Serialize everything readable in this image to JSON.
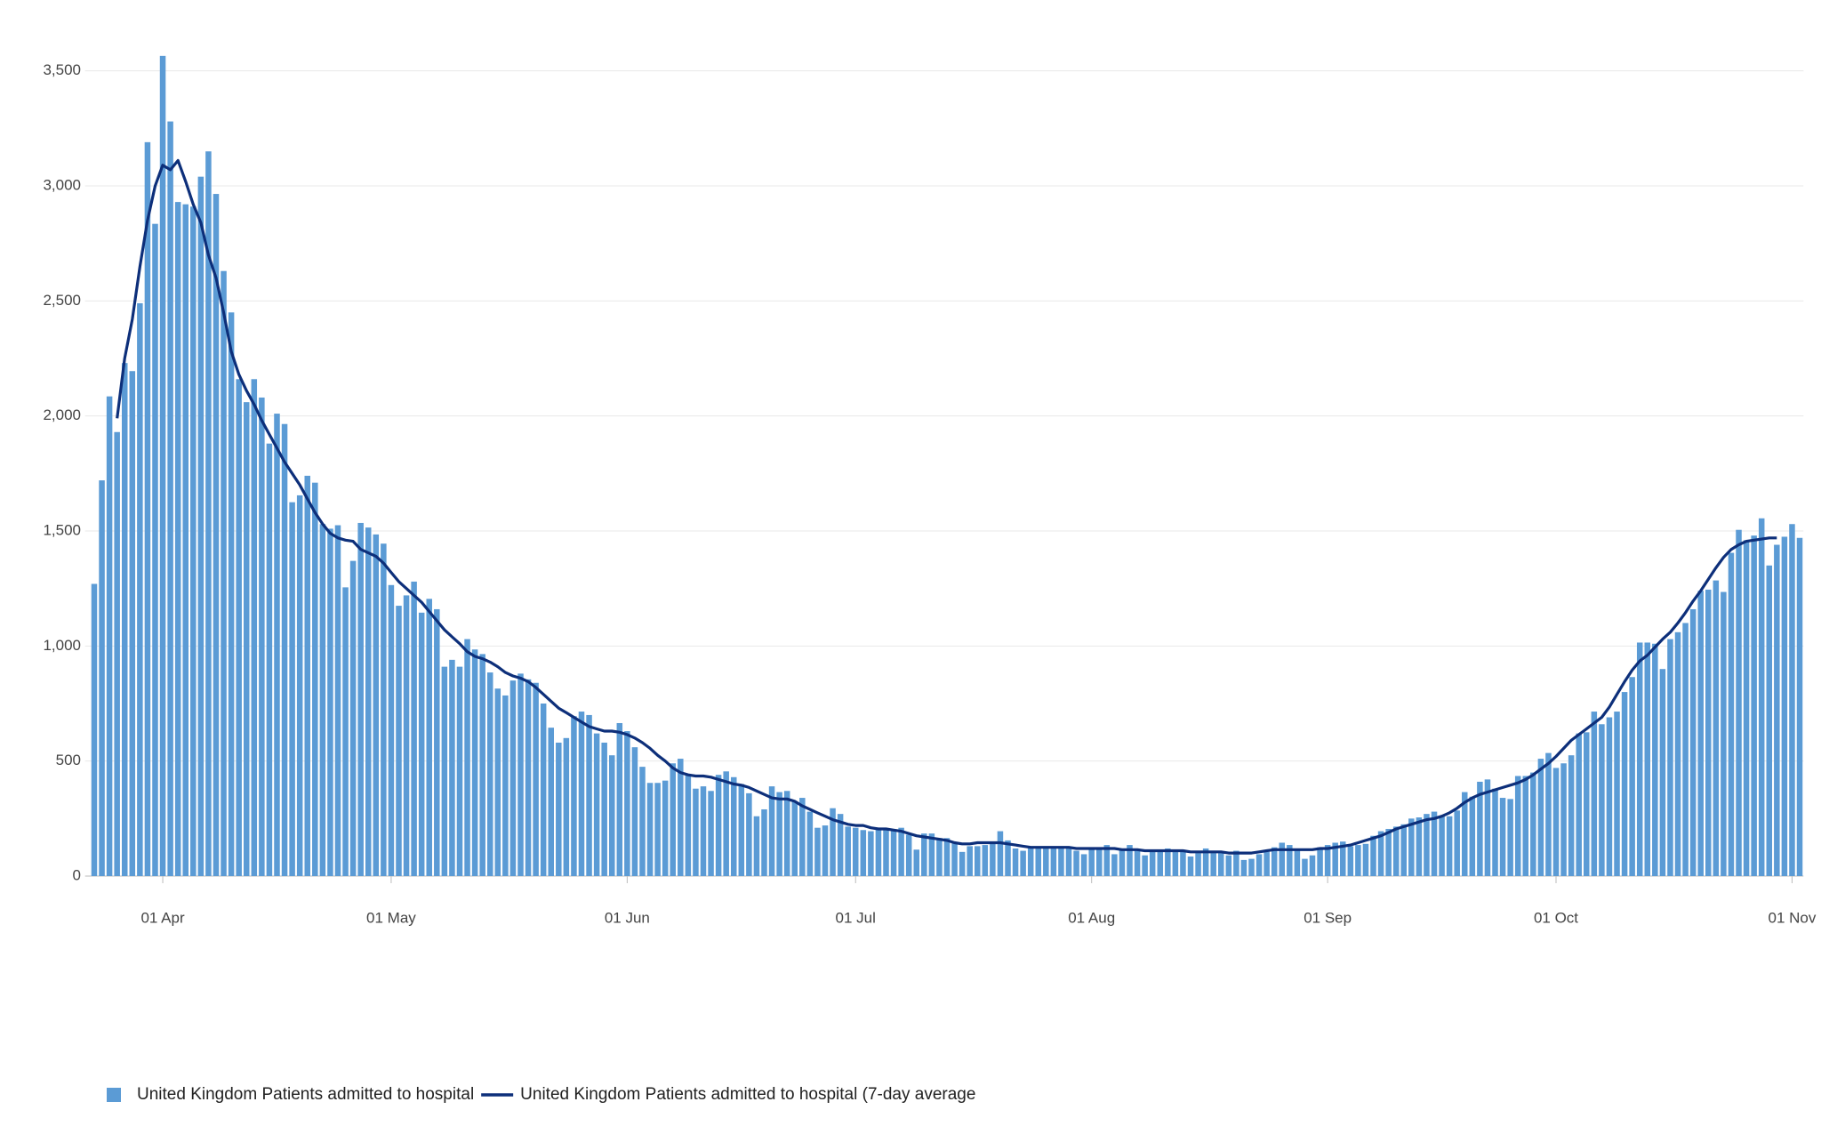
{
  "chart_data": {
    "type": "bar",
    "x": [
      "23 Mar",
      "24 Mar",
      "25 Mar",
      "26 Mar",
      "27 Mar",
      "28 Mar",
      "29 Mar",
      "30 Mar",
      "31 Mar",
      "01 Apr",
      "02 Apr",
      "03 Apr",
      "04 Apr",
      "05 Apr",
      "06 Apr",
      "07 Apr",
      "08 Apr",
      "09 Apr",
      "10 Apr",
      "11 Apr",
      "12 Apr",
      "13 Apr",
      "14 Apr",
      "15 Apr",
      "16 Apr",
      "17 Apr",
      "18 Apr",
      "19 Apr",
      "20 Apr",
      "21 Apr",
      "22 Apr",
      "23 Apr",
      "24 Apr",
      "25 Apr",
      "26 Apr",
      "27 Apr",
      "28 Apr",
      "29 Apr",
      "30 Apr",
      "01 May",
      "02 May",
      "03 May",
      "04 May",
      "05 May",
      "06 May",
      "07 May",
      "08 May",
      "09 May",
      "10 May",
      "11 May",
      "12 May",
      "13 May",
      "14 May",
      "15 May",
      "16 May",
      "17 May",
      "18 May",
      "19 May",
      "20 May",
      "21 May",
      "22 May",
      "23 May",
      "24 May",
      "25 May",
      "26 May",
      "27 May",
      "28 May",
      "29 May",
      "30 May",
      "31 May",
      "01 Jun",
      "02 Jun",
      "03 Jun",
      "04 Jun",
      "05 Jun",
      "06 Jun",
      "07 Jun",
      "08 Jun",
      "09 Jun",
      "10 Jun",
      "11 Jun",
      "12 Jun",
      "13 Jun",
      "14 Jun",
      "15 Jun",
      "16 Jun",
      "17 Jun",
      "18 Jun",
      "19 Jun",
      "20 Jun",
      "21 Jun",
      "22 Jun",
      "23 Jun",
      "24 Jun",
      "25 Jun",
      "26 Jun",
      "27 Jun",
      "28 Jun",
      "29 Jun",
      "30 Jun",
      "01 Jul",
      "02 Jul",
      "03 Jul",
      "04 Jul",
      "05 Jul",
      "06 Jul",
      "07 Jul",
      "08 Jul",
      "09 Jul",
      "10 Jul",
      "11 Jul",
      "12 Jul",
      "13 Jul",
      "14 Jul",
      "15 Jul",
      "16 Jul",
      "17 Jul",
      "18 Jul",
      "19 Jul",
      "20 Jul",
      "21 Jul",
      "22 Jul",
      "23 Jul",
      "24 Jul",
      "25 Jul",
      "26 Jul",
      "27 Jul",
      "28 Jul",
      "29 Jul",
      "30 Jul",
      "31 Jul",
      "01 Aug",
      "02 Aug",
      "03 Aug",
      "04 Aug",
      "05 Aug",
      "06 Aug",
      "07 Aug",
      "08 Aug",
      "09 Aug",
      "10 Aug",
      "11 Aug",
      "12 Aug",
      "13 Aug",
      "14 Aug",
      "15 Aug",
      "16 Aug",
      "17 Aug",
      "18 Aug",
      "19 Aug",
      "20 Aug",
      "21 Aug",
      "22 Aug",
      "23 Aug",
      "24 Aug",
      "25 Aug",
      "26 Aug",
      "27 Aug",
      "28 Aug",
      "29 Aug",
      "30 Aug",
      "31 Aug",
      "01 Sep",
      "02 Sep",
      "03 Sep",
      "04 Sep",
      "05 Sep",
      "06 Sep",
      "07 Sep",
      "08 Sep",
      "09 Sep",
      "10 Sep",
      "11 Sep",
      "12 Sep",
      "13 Sep",
      "14 Sep",
      "15 Sep",
      "16 Sep",
      "17 Sep",
      "18 Sep",
      "19 Sep",
      "20 Sep",
      "21 Sep",
      "22 Sep",
      "23 Sep",
      "24 Sep",
      "25 Sep",
      "26 Sep",
      "27 Sep",
      "28 Sep",
      "29 Sep",
      "30 Sep",
      "01 Oct",
      "02 Oct",
      "03 Oct",
      "04 Oct",
      "05 Oct",
      "06 Oct",
      "07 Oct",
      "08 Oct",
      "09 Oct",
      "10 Oct",
      "11 Oct",
      "12 Oct",
      "13 Oct",
      "14 Oct",
      "15 Oct",
      "16 Oct",
      "17 Oct",
      "18 Oct",
      "19 Oct",
      "20 Oct",
      "21 Oct",
      "22 Oct",
      "23 Oct",
      "24 Oct",
      "25 Oct",
      "26 Oct",
      "27 Oct",
      "28 Oct",
      "29 Oct",
      "30 Oct",
      "31 Oct",
      "01 Nov",
      "02 Nov"
    ],
    "series": [
      {
        "name": "United Kingdom Patients admitted to hospital",
        "type": "bar",
        "color": "#5b9bd5",
        "values": [
          1270,
          1720,
          2085,
          1930,
          2230,
          2195,
          2490,
          3190,
          2835,
          3565,
          3280,
          2930,
          2920,
          2910,
          3040,
          3150,
          2965,
          2630,
          2450,
          2160,
          2060,
          2160,
          2080,
          1880,
          2010,
          1965,
          1625,
          1655,
          1740,
          1710,
          1530,
          1510,
          1525,
          1255,
          1370,
          1535,
          1515,
          1485,
          1445,
          1265,
          1175,
          1220,
          1280,
          1145,
          1205,
          1160,
          910,
          940,
          910,
          1030,
          985,
          965,
          885,
          815,
          785,
          850,
          880,
          855,
          840,
          750,
          645,
          580,
          600,
          695,
          715,
          700,
          620,
          580,
          525,
          665,
          630,
          560,
          475,
          405,
          405,
          415,
          490,
          510,
          440,
          380,
          390,
          370,
          440,
          455,
          430,
          400,
          360,
          260,
          290,
          390,
          365,
          370,
          325,
          340,
          280,
          210,
          220,
          295,
          270,
          215,
          210,
          200,
          195,
          210,
          205,
          200,
          210,
          180,
          115,
          185,
          185,
          165,
          165,
          145,
          105,
          130,
          130,
          135,
          150,
          195,
          155,
          120,
          110,
          125,
          120,
          125,
          125,
          120,
          120,
          110,
          95,
          125,
          120,
          135,
          95,
          120,
          135,
          110,
          90,
          110,
          105,
          120,
          110,
          105,
          85,
          100,
          120,
          100,
          100,
          90,
          110,
          70,
          75,
          95,
          105,
          125,
          145,
          135,
          110,
          75,
          90,
          125,
          135,
          145,
          150,
          130,
          135,
          140,
          175,
          195,
          205,
          215,
          225,
          250,
          255,
          270,
          280,
          260,
          260,
          285,
          365,
          345,
          410,
          420,
          380,
          340,
          335,
          435,
          435,
          450,
          510,
          535,
          470,
          490,
          525,
          620,
          625,
          715,
          660,
          690,
          715,
          800,
          865,
          1015,
          1015,
          1010,
          900,
          1030,
          1060,
          1100,
          1160,
          1240,
          1245,
          1285,
          1235,
          1405,
          1505,
          1460,
          1480,
          1555,
          1350,
          1440,
          1475,
          1530,
          1470
        ]
      },
      {
        "name": "United Kingdom Patients admitted to hospital (7-day average",
        "type": "line",
        "color": "#0d2f7a",
        "values": [
          null,
          null,
          null,
          1990,
          2250,
          2420,
          2650,
          2850,
          3000,
          3090,
          3070,
          3110,
          3020,
          2920,
          2840,
          2700,
          2600,
          2450,
          2280,
          2180,
          2110,
          2050,
          1980,
          1920,
          1860,
          1800,
          1750,
          1700,
          1640,
          1580,
          1530,
          1490,
          1470,
          1460,
          1455,
          1420,
          1405,
          1390,
          1360,
          1320,
          1280,
          1250,
          1220,
          1190,
          1150,
          1110,
          1070,
          1040,
          1010,
          975,
          955,
          945,
          930,
          910,
          885,
          870,
          860,
          845,
          820,
          790,
          760,
          730,
          710,
          690,
          670,
          650,
          640,
          630,
          630,
          625,
          615,
          600,
          580,
          555,
          525,
          500,
          470,
          450,
          440,
          435,
          435,
          430,
          420,
          410,
          400,
          395,
          385,
          370,
          355,
          340,
          335,
          335,
          325,
          305,
          290,
          275,
          260,
          245,
          235,
          225,
          220,
          220,
          210,
          205,
          205,
          200,
          195,
          185,
          175,
          170,
          165,
          160,
          155,
          145,
          140,
          140,
          145,
          145,
          145,
          145,
          140,
          135,
          130,
          125,
          125,
          125,
          125,
          125,
          125,
          120,
          120,
          120,
          120,
          120,
          120,
          115,
          115,
          115,
          110,
          110,
          110,
          110,
          110,
          110,
          105,
          105,
          105,
          105,
          105,
          100,
          100,
          100,
          100,
          105,
          110,
          115,
          115,
          115,
          115,
          115,
          115,
          120,
          120,
          125,
          130,
          135,
          145,
          155,
          165,
          175,
          190,
          205,
          215,
          225,
          235,
          245,
          250,
          260,
          275,
          295,
          320,
          340,
          355,
          365,
          375,
          385,
          395,
          405,
          420,
          440,
          465,
          490,
          520,
          555,
          590,
          615,
          640,
          665,
          690,
          735,
          790,
          845,
          895,
          935,
          960,
          995,
          1030,
          1060,
          1100,
          1145,
          1195,
          1240,
          1290,
          1340,
          1385,
          1420,
          1440,
          1455,
          1460,
          1465,
          1470,
          1470,
          null,
          null,
          null
        ]
      }
    ],
    "xticks": [
      "01 Apr",
      "01 May",
      "01 Jun",
      "01 Jul",
      "01 Aug",
      "01 Sep",
      "01 Oct",
      "01 Nov"
    ],
    "ylim": [
      0,
      3750
    ],
    "yticks": [
      0,
      {
        "value": 500,
        "label": "500"
      },
      {
        "value": 1000,
        "label": "1,000"
      },
      {
        "value": 1500,
        "label": "1,500"
      },
      {
        "value": 2000,
        "label": "2,000"
      },
      {
        "value": 2500,
        "label": "2,500"
      },
      {
        "value": 3000,
        "label": "3,000"
      },
      {
        "value": 3500,
        "label": "3,500"
      }
    ],
    "grid": true,
    "legend": "bottom-left"
  }
}
